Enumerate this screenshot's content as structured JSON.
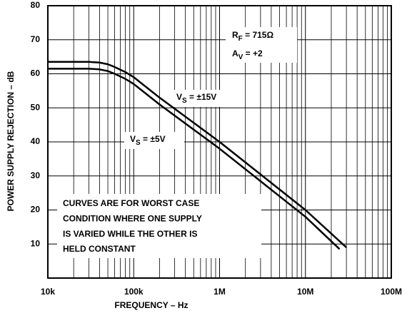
{
  "chart_data": {
    "type": "line",
    "x_label": "FREQUENCY – Hz",
    "y_label": "POWER SUPPLY REJECTION – dB",
    "xscale": "log",
    "xlim": [
      10000,
      100000000
    ],
    "xticks": [
      {
        "value": 10000,
        "label": "10k"
      },
      {
        "value": 100000,
        "label": "100k"
      },
      {
        "value": 1000000,
        "label": "1M"
      },
      {
        "value": 10000000,
        "label": "10M"
      },
      {
        "value": 100000000,
        "label": "100M"
      }
    ],
    "ylim": [
      0,
      80
    ],
    "yticks": [
      10,
      20,
      30,
      40,
      50,
      60,
      70,
      80
    ],
    "grid": true,
    "minor_grid": true,
    "series": [
      {
        "name": "VS = ±15V",
        "color": "#000000",
        "x": [
          10000,
          30000,
          40000,
          50000,
          60000,
          80000,
          100000,
          200000,
          1000000,
          10000000,
          30000000
        ],
        "values": [
          63.5,
          63.5,
          63.3,
          62.8,
          62,
          60.5,
          59,
          53,
          40,
          20,
          9
        ]
      },
      {
        "name": "VS = ±5V",
        "color": "#000000",
        "x": [
          10000,
          30000,
          40000,
          50000,
          60000,
          80000,
          100000,
          200000,
          1000000,
          10000000,
          25000000
        ],
        "values": [
          61.5,
          61.5,
          61.3,
          60.8,
          60,
          58.5,
          57,
          51,
          38,
          18,
          8.5
        ]
      }
    ],
    "annotations": [
      {
        "parts": [
          {
            "text": "R"
          },
          {
            "text": "F",
            "sub": true
          },
          {
            "text": " = 715Ω"
          }
        ]
      },
      {
        "parts": [
          {
            "text": "A"
          },
          {
            "text": "V",
            "sub": true
          },
          {
            "text": " = +2"
          }
        ]
      },
      {
        "parts": [
          {
            "text": "V"
          },
          {
            "text": "S",
            "sub": true
          },
          {
            "text": " = ±15V"
          }
        ]
      },
      {
        "parts": [
          {
            "text": "V"
          },
          {
            "text": "S",
            "sub": true
          },
          {
            "text": " = ±5V"
          }
        ]
      }
    ],
    "note_lines": [
      "CURVES ARE FOR WORST CASE",
      "CONDITION WHERE ONE SUPPLY",
      "IS VARIED WHILE THE OTHER IS",
      "HELD CONSTANT"
    ]
  }
}
